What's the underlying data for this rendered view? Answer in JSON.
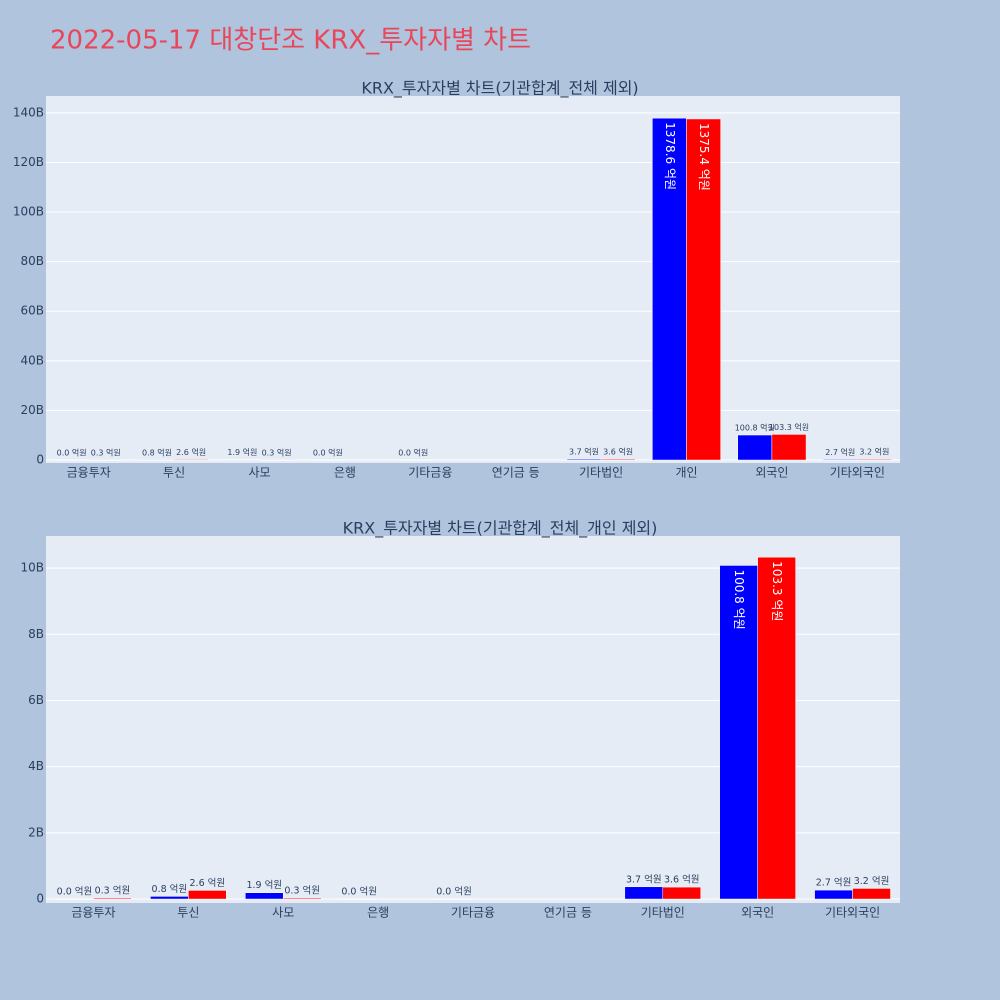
{
  "title": "2022-05-17 대창단조 KRX_투자자별 차트",
  "chart_data": [
    {
      "type": "bar",
      "title": "KRX_투자자별 차트(기관합계_전체 제외)",
      "categories": [
        "금융투자",
        "투신",
        "사모",
        "은행",
        "기타금융",
        "연기금 등",
        "기타법인",
        "개인",
        "외국인",
        "기타외국인"
      ],
      "series": [
        {
          "color": "#0000ff",
          "values": [
            0,
            80000000,
            190000000,
            0,
            0,
            null,
            370000000,
            137860000000,
            10080000000,
            270000000
          ],
          "value_labels": [
            "0.0 억원",
            "0.8 억원",
            "1.9 억원",
            "0.0 억원",
            "0.0 억원",
            null,
            "3.7 억원",
            "1378.6 억원",
            "100.8 억원",
            "2.7 억원"
          ]
        },
        {
          "color": "#ff0000",
          "values": [
            30000000,
            260000000,
            30000000,
            null,
            null,
            null,
            360000000,
            137540000000,
            10330000000,
            320000000
          ],
          "value_labels": [
            "0.3 억원",
            "2.6 억원",
            "0.3 억원",
            null,
            null,
            null,
            "3.6 억원",
            "1375.4 억원",
            "103.3 억원",
            "3.2 억원"
          ]
        }
      ],
      "ylim": [
        -1200000000,
        146800000000
      ],
      "yticks": [
        0,
        {
          "value": 20000000000,
          "label": "20B"
        },
        {
          "value": 40000000000,
          "label": "40B"
        },
        {
          "value": 60000000000,
          "label": "60B"
        },
        {
          "value": 80000000000,
          "label": "80B"
        },
        {
          "value": 100000000000,
          "label": "100B"
        },
        {
          "value": 120000000000,
          "label": "120B"
        },
        {
          "value": 140000000000,
          "label": "140B"
        }
      ],
      "grid": true
    },
    {
      "type": "bar",
      "title": "KRX_투자자별 차트(기관합계_전체_개인 제외)",
      "categories": [
        "금융투자",
        "투신",
        "사모",
        "은행",
        "기타금융",
        "연기금 등",
        "기타법인",
        "외국인",
        "기타외국인"
      ],
      "series": [
        {
          "color": "#0000ff",
          "values": [
            0,
            80000000,
            190000000,
            0,
            0,
            null,
            370000000,
            10080000000,
            270000000
          ],
          "value_labels": [
            "0.0 억원",
            "0.8 억원",
            "1.9 억원",
            "0.0 억원",
            "0.0 억원",
            null,
            "3.7 억원",
            "100.8 억원",
            "2.7 억원"
          ]
        },
        {
          "color": "#ff0000",
          "values": [
            30000000,
            260000000,
            30000000,
            null,
            null,
            null,
            360000000,
            10330000000,
            320000000
          ],
          "value_labels": [
            "0.3 억원",
            "2.6 억원",
            "0.3 억원",
            null,
            null,
            null,
            "3.6 억원",
            "103.3 억원",
            "3.2 억원"
          ]
        }
      ],
      "ylim": [
        -120000000,
        10970000000
      ],
      "yticks": [
        0,
        {
          "value": 2000000000,
          "label": "2B"
        },
        {
          "value": 4000000000,
          "label": "4B"
        },
        {
          "value": 6000000000,
          "label": "6B"
        },
        {
          "value": 8000000000,
          "label": "8B"
        },
        {
          "value": 10000000000,
          "label": "10B"
        }
      ],
      "grid": true
    }
  ]
}
